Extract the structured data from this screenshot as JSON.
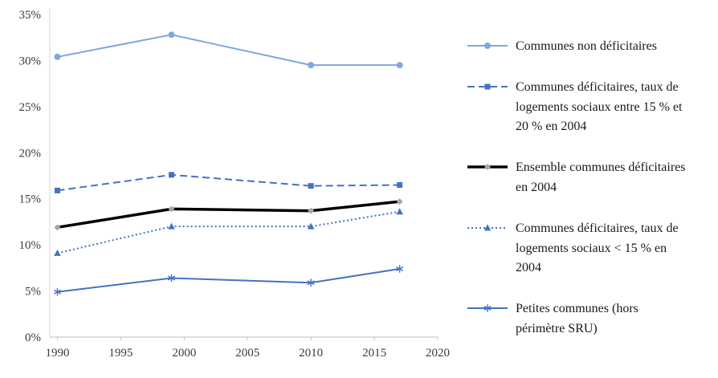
{
  "chart_data": {
    "type": "line",
    "title": "",
    "xlabel": "",
    "ylabel": "",
    "x": [
      1990,
      1999,
      2010,
      2017
    ],
    "xlim": [
      1989.4,
      2020
    ],
    "ylim": [
      0,
      35
    ],
    "ytick_step": 5,
    "xticks": [
      1990,
      1995,
      2000,
      2005,
      2010,
      2015,
      2020
    ],
    "ytick_labels": [
      "0%",
      "5%",
      "10%",
      "15%",
      "20%",
      "25%",
      "30%",
      "35%"
    ],
    "grid": false,
    "legend_position": "right",
    "series": [
      {
        "name": "Communes non déficitaires",
        "values": [
          30.4,
          32.8,
          29.5,
          29.5
        ],
        "color": "#7FA8DC",
        "dash": "solid",
        "marker": "circle",
        "width": 2
      },
      {
        "name": "Communes déficitaires, taux de logements sociaux entre 15 % et 20 % en 2004",
        "values": [
          15.9,
          17.6,
          16.4,
          16.5
        ],
        "color": "#4472C4",
        "dash": "dashed",
        "marker": "square",
        "width": 2
      },
      {
        "name": "Ensemble communes déficitaires en 2004",
        "values": [
          11.9,
          13.9,
          13.7,
          14.7
        ],
        "color": "#000000",
        "marker_color": "#A6A6A6",
        "dash": "solid",
        "marker": "diamond",
        "width": 3.5
      },
      {
        "name": "Communes déficitaires, taux de logements sociaux < 15 % en 2004",
        "values": [
          9.1,
          12.0,
          12.0,
          13.6
        ],
        "color": "#4472C4",
        "dash": "dotted",
        "marker": "triangle",
        "width": 2
      },
      {
        "name": "Petites communes (hors périmètre SRU)",
        "values": [
          4.9,
          6.4,
          5.9,
          7.4
        ],
        "color": "#4472C4",
        "dash": "solid",
        "marker": "asterisk",
        "width": 2
      }
    ],
    "colors": {
      "axis_line": "#BFBFBF",
      "tick_text": "#3b3b3b",
      "accent_blue": "#4472C4",
      "light_blue": "#7FA8DC",
      "gray_marker": "#A6A6A6"
    }
  }
}
